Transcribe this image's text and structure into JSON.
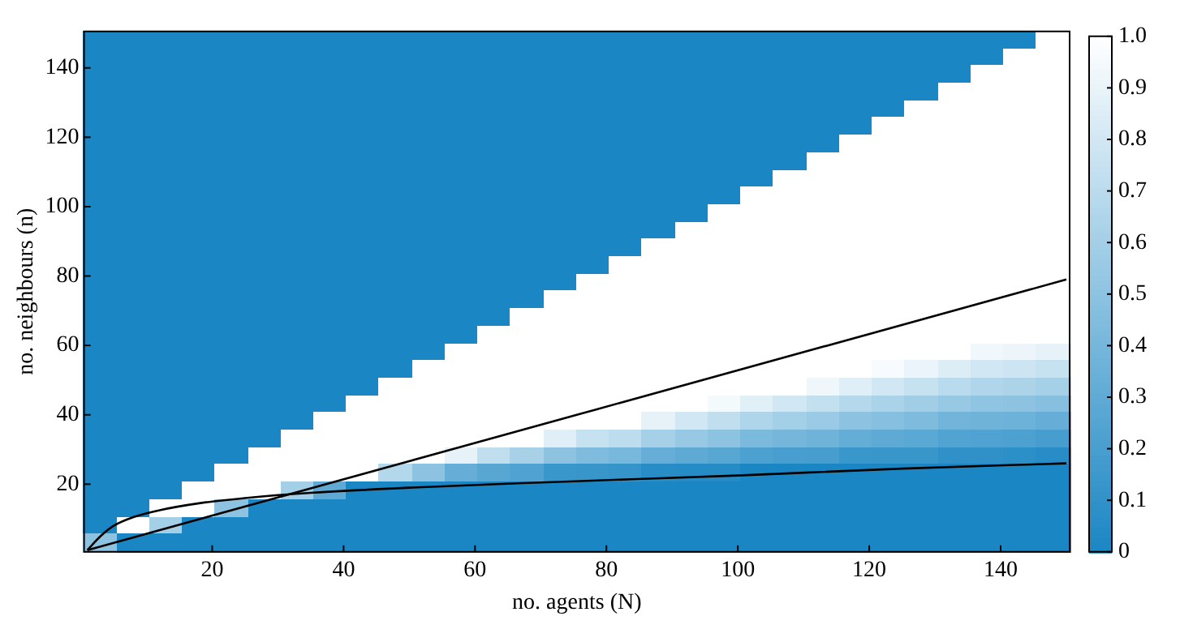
{
  "chart_data": {
    "type": "heatmap",
    "xlabel": "no. agents (N)",
    "ylabel": "no. neighbours (n)",
    "xlim": [
      0.5,
      150.5
    ],
    "ylim": [
      0.5,
      150.5
    ],
    "xticks": [
      20,
      40,
      60,
      80,
      100,
      120,
      140
    ],
    "yticks": [
      20,
      40,
      60,
      80,
      100,
      120,
      140
    ],
    "clim": [
      0,
      1
    ],
    "cticks": [
      0,
      0.1,
      0.2,
      0.3,
      0.4,
      0.5,
      0.6,
      0.7,
      0.8,
      0.9,
      {
        "value": 1,
        "label": "1.0"
      }
    ],
    "cells": [
      [
        0,
        0,
        0,
        0,
        0,
        0,
        0,
        0,
        0,
        0,
        0,
        0,
        0,
        0,
        0,
        0,
        0,
        0,
        0,
        0,
        0,
        0,
        0,
        0,
        0,
        0,
        0,
        0,
        0,
        1
      ],
      [
        0,
        0,
        0,
        0,
        0,
        0,
        0,
        0,
        0,
        0,
        0,
        0,
        0,
        0,
        0,
        0,
        0,
        0,
        0,
        0,
        0,
        0,
        0,
        0,
        0,
        0,
        0,
        0,
        1,
        1
      ],
      [
        0,
        0,
        0,
        0,
        0,
        0,
        0,
        0,
        0,
        0,
        0,
        0,
        0,
        0,
        0,
        0,
        0,
        0,
        0,
        0,
        0,
        0,
        0,
        0,
        0,
        0,
        0,
        1,
        1,
        1
      ],
      [
        0,
        0,
        0,
        0,
        0,
        0,
        0,
        0,
        0,
        0,
        0,
        0,
        0,
        0,
        0,
        0,
        0,
        0,
        0,
        0,
        0,
        0,
        0,
        0,
        0,
        0,
        1,
        1,
        1,
        1
      ],
      [
        0,
        0,
        0,
        0,
        0,
        0,
        0,
        0,
        0,
        0,
        0,
        0,
        0,
        0,
        0,
        0,
        0,
        0,
        0,
        0,
        0,
        0,
        0,
        0,
        0,
        1,
        1,
        1,
        1,
        1
      ],
      [
        0,
        0,
        0,
        0,
        0,
        0,
        0,
        0,
        0,
        0,
        0,
        0,
        0,
        0,
        0,
        0,
        0,
        0,
        0,
        0,
        0,
        0,
        0,
        0,
        1,
        1,
        1,
        1,
        1,
        1
      ],
      [
        0,
        0,
        0,
        0,
        0,
        0,
        0,
        0,
        0,
        0,
        0,
        0,
        0,
        0,
        0,
        0,
        0,
        0,
        0,
        0,
        0,
        0,
        0,
        1,
        1,
        1,
        1,
        1,
        1,
        1
      ],
      [
        0,
        0,
        0,
        0,
        0,
        0,
        0,
        0,
        0,
        0,
        0,
        0,
        0,
        0,
        0,
        0,
        0,
        0,
        0,
        0,
        0,
        0,
        1,
        1,
        1,
        1,
        1,
        1,
        1,
        1
      ],
      [
        0,
        0,
        0,
        0,
        0,
        0,
        0,
        0,
        0,
        0,
        0,
        0,
        0,
        0,
        0,
        0,
        0,
        0,
        0,
        0,
        0,
        1,
        1,
        1,
        1,
        1,
        1,
        1,
        1,
        1
      ],
      [
        0,
        0,
        0,
        0,
        0,
        0,
        0,
        0,
        0,
        0,
        0,
        0,
        0,
        0,
        0,
        0,
        0,
        0,
        0,
        0,
        1,
        1,
        1,
        1,
        1,
        1,
        1,
        1,
        1,
        1
      ],
      [
        0,
        0,
        0,
        0,
        0,
        0,
        0,
        0,
        0,
        0,
        0,
        0,
        0,
        0,
        0,
        0,
        0,
        0,
        0,
        1,
        1,
        1,
        1,
        1,
        1,
        1,
        1,
        1,
        1,
        1
      ],
      [
        0,
        0,
        0,
        0,
        0,
        0,
        0,
        0,
        0,
        0,
        0,
        0,
        0,
        0,
        0,
        0,
        0,
        0,
        1,
        1,
        1,
        1,
        1,
        1,
        1,
        1,
        1,
        1,
        1,
        1
      ],
      [
        0,
        0,
        0,
        0,
        0,
        0,
        0,
        0,
        0,
        0,
        0,
        0,
        0,
        0,
        0,
        0,
        0,
        1,
        1,
        1,
        1,
        1,
        1,
        1,
        1,
        1,
        1,
        1,
        1,
        1
      ],
      [
        0,
        0,
        0,
        0,
        0,
        0,
        0,
        0,
        0,
        0,
        0,
        0,
        0,
        0,
        0,
        0,
        1,
        1,
        1,
        1,
        1,
        1,
        1,
        1,
        1,
        1,
        1,
        1,
        1,
        1
      ],
      [
        0,
        0,
        0,
        0,
        0,
        0,
        0,
        0,
        0,
        0,
        0,
        0,
        0,
        0,
        0,
        1,
        1,
        1,
        1,
        1,
        1,
        1,
        1,
        1,
        1,
        1,
        1,
        1,
        1,
        1
      ],
      [
        0,
        0,
        0,
        0,
        0,
        0,
        0,
        0,
        0,
        0,
        0,
        0,
        0,
        0,
        1,
        1,
        1,
        1,
        1,
        1,
        1,
        1,
        1,
        1,
        1,
        1,
        1,
        1,
        1,
        1
      ],
      [
        0,
        0,
        0,
        0,
        0,
        0,
        0,
        0,
        0,
        0,
        0,
        0,
        0,
        1,
        1,
        1,
        1,
        1,
        1,
        1,
        1,
        1,
        1,
        1,
        1,
        1,
        1,
        1,
        1,
        1
      ],
      [
        0,
        0,
        0,
        0,
        0,
        0,
        0,
        0,
        0,
        0,
        0,
        0,
        1,
        1,
        1,
        1,
        1,
        1,
        1,
        1,
        1,
        1,
        1,
        1,
        1,
        1,
        1,
        1,
        1,
        1
      ],
      [
        0,
        0,
        0,
        0,
        0,
        0,
        0,
        0,
        0,
        0,
        0,
        1,
        1,
        1,
        1,
        1,
        1,
        1,
        1,
        1,
        1,
        1,
        1,
        1,
        1,
        1,
        1,
        0.94,
        0.92,
        0.89
      ],
      [
        0,
        0,
        0,
        0,
        0,
        0,
        0,
        0,
        0,
        0,
        1,
        1,
        1,
        1,
        1,
        1,
        1,
        1,
        1,
        1,
        1,
        1,
        1,
        1,
        0.97,
        0.91,
        0.85,
        0.8,
        0.78,
        0.75
      ],
      [
        0,
        0,
        0,
        0,
        0,
        0,
        0,
        0,
        0,
        1,
        1,
        1,
        1,
        1,
        1,
        1,
        1,
        1,
        1,
        1,
        1,
        1,
        0.93,
        0.86,
        0.8,
        0.75,
        0.7,
        0.66,
        0.64,
        0.61
      ],
      [
        0,
        0,
        0,
        0,
        0,
        0,
        0,
        0,
        1,
        1,
        1,
        1,
        1,
        1,
        1,
        1,
        1,
        1,
        1,
        0.95,
        0.87,
        0.8,
        0.74,
        0.68,
        0.63,
        0.59,
        0.55,
        0.51,
        0.5,
        0.47
      ],
      [
        0,
        0,
        0,
        0,
        0,
        0,
        0,
        1,
        1,
        1,
        1,
        1,
        1,
        1,
        1,
        1,
        1,
        0.89,
        0.8,
        0.73,
        0.65,
        0.6,
        0.56,
        0.5,
        0.47,
        0.44,
        0.39,
        0.37,
        0.36,
        0.33
      ],
      [
        0,
        0,
        0,
        0,
        0,
        0,
        1,
        1,
        1,
        1,
        1,
        1,
        1,
        1,
        0.86,
        0.75,
        0.71,
        0.61,
        0.55,
        0.5,
        0.43,
        0.4,
        0.37,
        0.32,
        0.3,
        0.28,
        0.24,
        0.23,
        0.22,
        0.19
      ],
      [
        0,
        0,
        0,
        0,
        0,
        1,
        1,
        1,
        1,
        1,
        1,
        0.89,
        0.73,
        0.62,
        0.5,
        0.44,
        0.41,
        0.33,
        0.3,
        0.27,
        0.22,
        0.2,
        0.19,
        0.14,
        0.13,
        0.13,
        0.09,
        0.09,
        0.08,
        0.06
      ],
      [
        0,
        0,
        0,
        0,
        1,
        1,
        1,
        1,
        1,
        0.67,
        0.5,
        0.33,
        0.27,
        0.23,
        0.14,
        0.13,
        0.12,
        0.06,
        0.05,
        0.05,
        0,
        0,
        0,
        0,
        0,
        0,
        0,
        0,
        0,
        0
      ],
      [
        0,
        0,
        0,
        1,
        1,
        1,
        0.6,
        0.3,
        0,
        0,
        0,
        0,
        0,
        0,
        0,
        0,
        0,
        0,
        0,
        0,
        0,
        0,
        0,
        0,
        0,
        0,
        0,
        0,
        0,
        0
      ],
      [
        0,
        0,
        1,
        1,
        0.5,
        0,
        0,
        0,
        0,
        0,
        0,
        0,
        0,
        0,
        0,
        0,
        0,
        0,
        0,
        0,
        0,
        0,
        0,
        0,
        0,
        0,
        0,
        0,
        0,
        0
      ],
      [
        0,
        1,
        0.6,
        0,
        0,
        0,
        0,
        0,
        0,
        0,
        0,
        0,
        0,
        0,
        0,
        0,
        0,
        0,
        0,
        0,
        0,
        0,
        0,
        0,
        0,
        0,
        0,
        0,
        0,
        0
      ],
      [
        0.5,
        0,
        0,
        0,
        0,
        0,
        0,
        0,
        0,
        0,
        0,
        0,
        0,
        0,
        0,
        0,
        0,
        0,
        0,
        0,
        0,
        0,
        0,
        0,
        0,
        0,
        0,
        0,
        0,
        0
      ]
    ],
    "series": [
      {
        "type": "line",
        "color": "#000000",
        "x": [
          1,
          150
        ],
        "values": [
          1,
          79
        ]
      },
      {
        "type": "line",
        "color": "#000000",
        "x": [
          1,
          3,
          5,
          8,
          12,
          18,
          25,
          35,
          50,
          70,
          100,
          125,
          150
        ],
        "values": [
          1,
          5,
          8,
          10.5,
          12.5,
          14.5,
          16,
          17.5,
          19,
          20.5,
          22.5,
          24.5,
          26
        ]
      }
    ]
  }
}
